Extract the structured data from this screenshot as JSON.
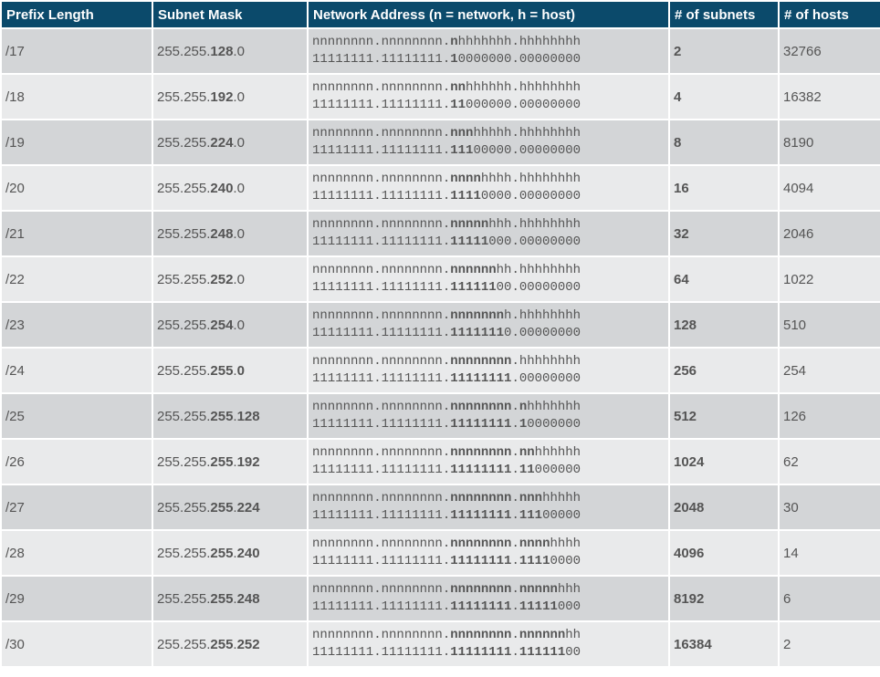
{
  "headers": [
    "Prefix Length",
    "Subnet Mask",
    "Network Address (n = network, h = host)",
    "# of subnets",
    "# of hosts"
  ],
  "rows": [
    {
      "prefix": "/17",
      "mask": [
        {
          "t": "255.255.",
          "b": false
        },
        {
          "t": "128",
          "b": true
        },
        {
          "t": ".0",
          "b": false
        }
      ],
      "net_line": [
        {
          "t": "nnnnnnnn.nnnnnnnn.",
          "b": false
        },
        {
          "t": "n",
          "b": true
        },
        {
          "t": "hhhhhhh.hhhhhhhh",
          "b": false
        }
      ],
      "bin_line": [
        {
          "t": "11111111.11111111.",
          "b": false
        },
        {
          "t": "1",
          "b": true
        },
        {
          "t": "0000000.00000000",
          "b": false
        }
      ],
      "subnets": "2",
      "hosts": "32766"
    },
    {
      "prefix": "/18",
      "mask": [
        {
          "t": "255.255.",
          "b": false
        },
        {
          "t": "192",
          "b": true
        },
        {
          "t": ".0",
          "b": false
        }
      ],
      "net_line": [
        {
          "t": "nnnnnnnn.nnnnnnnn.",
          "b": false
        },
        {
          "t": "nn",
          "b": true
        },
        {
          "t": "hhhhhh.hhhhhhhh",
          "b": false
        }
      ],
      "bin_line": [
        {
          "t": "11111111.11111111.",
          "b": false
        },
        {
          "t": "11",
          "b": true
        },
        {
          "t": "000000.00000000",
          "b": false
        }
      ],
      "subnets": "4",
      "hosts": "16382"
    },
    {
      "prefix": "/19",
      "mask": [
        {
          "t": "255.255.",
          "b": false
        },
        {
          "t": "224",
          "b": true
        },
        {
          "t": ".0",
          "b": false
        }
      ],
      "net_line": [
        {
          "t": "nnnnnnnn.nnnnnnnn.",
          "b": false
        },
        {
          "t": "nnn",
          "b": true
        },
        {
          "t": "hhhhh.hhhhhhhh",
          "b": false
        }
      ],
      "bin_line": [
        {
          "t": "11111111.11111111.",
          "b": false
        },
        {
          "t": "111",
          "b": true
        },
        {
          "t": "00000.00000000",
          "b": false
        }
      ],
      "subnets": "8",
      "hosts": "8190"
    },
    {
      "prefix": "/20",
      "mask": [
        {
          "t": "255.255.",
          "b": false
        },
        {
          "t": "240",
          "b": true
        },
        {
          "t": ".0",
          "b": false
        }
      ],
      "net_line": [
        {
          "t": "nnnnnnnn.nnnnnnnn.",
          "b": false
        },
        {
          "t": "nnnn",
          "b": true
        },
        {
          "t": "hhhh.hhhhhhhh",
          "b": false
        }
      ],
      "bin_line": [
        {
          "t": "11111111.11111111.",
          "b": false
        },
        {
          "t": "1111",
          "b": true
        },
        {
          "t": "0000.00000000",
          "b": false
        }
      ],
      "subnets": "16",
      "hosts": "4094"
    },
    {
      "prefix": "/21",
      "mask": [
        {
          "t": "255.255.",
          "b": false
        },
        {
          "t": "248",
          "b": true
        },
        {
          "t": ".0",
          "b": false
        }
      ],
      "net_line": [
        {
          "t": "nnnnnnnn.nnnnnnnn.",
          "b": false
        },
        {
          "t": "nnnnn",
          "b": true
        },
        {
          "t": "hhh.hhhhhhhh",
          "b": false
        }
      ],
      "bin_line": [
        {
          "t": "11111111.11111111.",
          "b": false
        },
        {
          "t": "11111",
          "b": true
        },
        {
          "t": "000.00000000",
          "b": false
        }
      ],
      "subnets": "32",
      "hosts": "2046"
    },
    {
      "prefix": "/22",
      "mask": [
        {
          "t": "255.255.",
          "b": false
        },
        {
          "t": "252",
          "b": true
        },
        {
          "t": ".0",
          "b": false
        }
      ],
      "net_line": [
        {
          "t": "nnnnnnnn.nnnnnnnn.",
          "b": false
        },
        {
          "t": "nnnnnn",
          "b": true
        },
        {
          "t": "hh.hhhhhhhh",
          "b": false
        }
      ],
      "bin_line": [
        {
          "t": "11111111.11111111.",
          "b": false
        },
        {
          "t": "111111",
          "b": true
        },
        {
          "t": "00.00000000",
          "b": false
        }
      ],
      "subnets": "64",
      "hosts": "1022"
    },
    {
      "prefix": "/23",
      "mask": [
        {
          "t": "255.255.",
          "b": false
        },
        {
          "t": "254",
          "b": true
        },
        {
          "t": ".0",
          "b": false
        }
      ],
      "net_line": [
        {
          "t": "nnnnnnnn.nnnnnnnn.",
          "b": false
        },
        {
          "t": "nnnnnnn",
          "b": true
        },
        {
          "t": "h.hhhhhhhh",
          "b": false
        }
      ],
      "bin_line": [
        {
          "t": "11111111.11111111.",
          "b": false
        },
        {
          "t": "1111111",
          "b": true
        },
        {
          "t": "0.00000000",
          "b": false
        }
      ],
      "subnets": "128",
      "hosts": "510"
    },
    {
      "prefix": "/24",
      "mask": [
        {
          "t": "255.255.",
          "b": false
        },
        {
          "t": "255",
          "b": true
        },
        {
          "t": ".",
          "b": false
        },
        {
          "t": "0",
          "b": true
        }
      ],
      "net_line": [
        {
          "t": "nnnnnnnn.nnnnnnnn.",
          "b": false
        },
        {
          "t": "nnnnnnnn",
          "b": true
        },
        {
          "t": ".hhhhhhhh",
          "b": false
        }
      ],
      "bin_line": [
        {
          "t": "11111111.11111111.",
          "b": false
        },
        {
          "t": "11111111",
          "b": true
        },
        {
          "t": ".00000000",
          "b": false
        }
      ],
      "subnets": "256",
      "hosts": "254"
    },
    {
      "prefix": "/25",
      "mask": [
        {
          "t": "255.255.",
          "b": false
        },
        {
          "t": "255",
          "b": true
        },
        {
          "t": ".",
          "b": false
        },
        {
          "t": "128",
          "b": true
        }
      ],
      "net_line": [
        {
          "t": "nnnnnnnn.nnnnnnnn.",
          "b": false
        },
        {
          "t": "nnnnnnnn",
          "b": true
        },
        {
          "t": ".",
          "b": false
        },
        {
          "t": "n",
          "b": true
        },
        {
          "t": "hhhhhhh",
          "b": false
        }
      ],
      "bin_line": [
        {
          "t": "11111111.11111111.",
          "b": false
        },
        {
          "t": "11111111",
          "b": true
        },
        {
          "t": ".",
          "b": false
        },
        {
          "t": "1",
          "b": true
        },
        {
          "t": "0000000",
          "b": false
        }
      ],
      "subnets": "512",
      "hosts": "126"
    },
    {
      "prefix": "/26",
      "mask": [
        {
          "t": "255.255.",
          "b": false
        },
        {
          "t": "255",
          "b": true
        },
        {
          "t": ".",
          "b": false
        },
        {
          "t": "192",
          "b": true
        }
      ],
      "net_line": [
        {
          "t": "nnnnnnnn.nnnnnnnn.",
          "b": false
        },
        {
          "t": "nnnnnnnn",
          "b": true
        },
        {
          "t": ".",
          "b": false
        },
        {
          "t": "nn",
          "b": true
        },
        {
          "t": "hhhhhh",
          "b": false
        }
      ],
      "bin_line": [
        {
          "t": "11111111.11111111.",
          "b": false
        },
        {
          "t": "11111111",
          "b": true
        },
        {
          "t": ".",
          "b": false
        },
        {
          "t": "11",
          "b": true
        },
        {
          "t": "000000",
          "b": false
        }
      ],
      "subnets": "1024",
      "hosts": "62"
    },
    {
      "prefix": "/27",
      "mask": [
        {
          "t": "255.255.",
          "b": false
        },
        {
          "t": "255",
          "b": true
        },
        {
          "t": ".",
          "b": false
        },
        {
          "t": "224",
          "b": true
        }
      ],
      "net_line": [
        {
          "t": "nnnnnnnn.nnnnnnnn.",
          "b": false
        },
        {
          "t": "nnnnnnnn",
          "b": true
        },
        {
          "t": ".",
          "b": false
        },
        {
          "t": "nnn",
          "b": true
        },
        {
          "t": "hhhhh",
          "b": false
        }
      ],
      "bin_line": [
        {
          "t": "11111111.11111111.",
          "b": false
        },
        {
          "t": "11111111",
          "b": true
        },
        {
          "t": ".",
          "b": false
        },
        {
          "t": "111",
          "b": true
        },
        {
          "t": "00000",
          "b": false
        }
      ],
      "subnets": "2048",
      "hosts": "30"
    },
    {
      "prefix": "/28",
      "mask": [
        {
          "t": "255.255.",
          "b": false
        },
        {
          "t": "255",
          "b": true
        },
        {
          "t": ".",
          "b": false
        },
        {
          "t": "240",
          "b": true
        }
      ],
      "net_line": [
        {
          "t": "nnnnnnnn.nnnnnnnn.",
          "b": false
        },
        {
          "t": "nnnnnnnn",
          "b": true
        },
        {
          "t": ".",
          "b": false
        },
        {
          "t": "nnnn",
          "b": true
        },
        {
          "t": "hhhh",
          "b": false
        }
      ],
      "bin_line": [
        {
          "t": "11111111.11111111.",
          "b": false
        },
        {
          "t": "11111111",
          "b": true
        },
        {
          "t": ".",
          "b": false
        },
        {
          "t": "1111",
          "b": true
        },
        {
          "t": "0000",
          "b": false
        }
      ],
      "subnets": "4096",
      "hosts": "14"
    },
    {
      "prefix": "/29",
      "mask": [
        {
          "t": "255.255.",
          "b": false
        },
        {
          "t": "255",
          "b": true
        },
        {
          "t": ".",
          "b": false
        },
        {
          "t": "248",
          "b": true
        }
      ],
      "net_line": [
        {
          "t": "nnnnnnnn.nnnnnnnn.",
          "b": false
        },
        {
          "t": "nnnnnnnn",
          "b": true
        },
        {
          "t": ".",
          "b": false
        },
        {
          "t": "nnnnn",
          "b": true
        },
        {
          "t": "hhh",
          "b": false
        }
      ],
      "bin_line": [
        {
          "t": "11111111.11111111.",
          "b": false
        },
        {
          "t": "11111111",
          "b": true
        },
        {
          "t": ".",
          "b": false
        },
        {
          "t": "11111",
          "b": true
        },
        {
          "t": "000",
          "b": false
        }
      ],
      "subnets": "8192",
      "hosts": "6"
    },
    {
      "prefix": "/30",
      "mask": [
        {
          "t": "255.255.",
          "b": false
        },
        {
          "t": "255",
          "b": true
        },
        {
          "t": ".",
          "b": false
        },
        {
          "t": "252",
          "b": true
        }
      ],
      "net_line": [
        {
          "t": "nnnnnnnn.nnnnnnnn.",
          "b": false
        },
        {
          "t": "nnnnnnnn",
          "b": true
        },
        {
          "t": ".",
          "b": false
        },
        {
          "t": "nnnnnn",
          "b": true
        },
        {
          "t": "hh",
          "b": false
        }
      ],
      "bin_line": [
        {
          "t": "11111111.11111111.",
          "b": false
        },
        {
          "t": "11111111",
          "b": true
        },
        {
          "t": ".",
          "b": false
        },
        {
          "t": "111111",
          "b": true
        },
        {
          "t": "00",
          "b": false
        }
      ],
      "subnets": "16384",
      "hosts": "2"
    }
  ]
}
